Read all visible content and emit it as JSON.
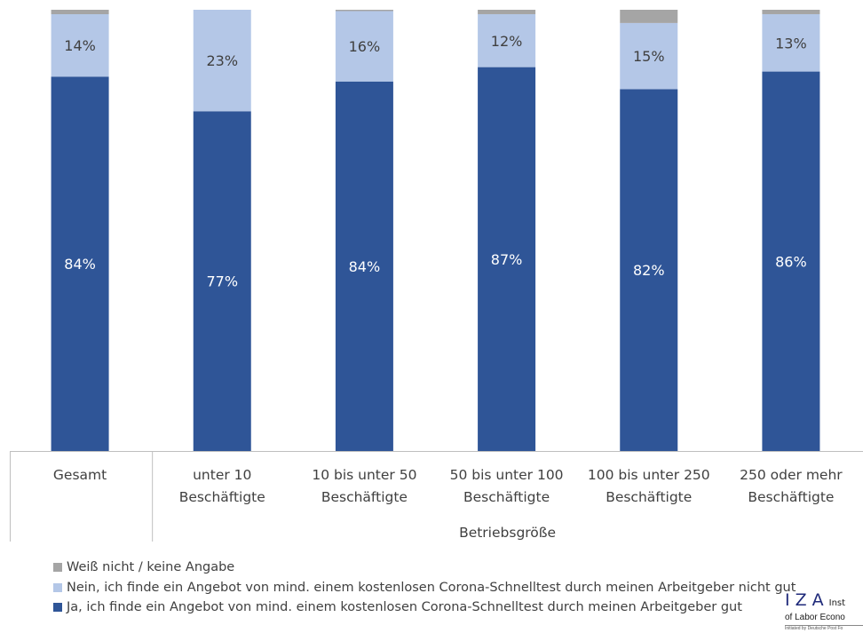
{
  "chart_data": {
    "type": "bar",
    "stacked": true,
    "normalized_percent": true,
    "categories": [
      [
        "Gesamt"
      ],
      [
        "unter 10",
        "Beschäftigte"
      ],
      [
        "10 bis unter 50",
        "Beschäftigte"
      ],
      [
        "50 bis unter 100",
        "Beschäftigte"
      ],
      [
        "100 bis unter 250",
        "Beschäftigte"
      ],
      [
        "250 oder mehr",
        "Beschäftigte"
      ]
    ],
    "group_label": "Betriebsgröße",
    "series": [
      {
        "name": "Ja, ich finde ein Angebot von mind. einem kostenlosen Corona-Schnelltest durch meinen Arbeitgeber gut",
        "color": "#2f5597",
        "values": [
          84,
          77,
          84,
          87,
          82,
          86
        ],
        "labels": [
          "84%",
          "77%",
          "84%",
          "87%",
          "82%",
          "86%"
        ]
      },
      {
        "name": "Nein, ich finde ein Angebot von mind. einem kostenlosen Corona-Schnelltest durch meinen Arbeitgeber nicht gut",
        "color": "#b4c7e7",
        "values": [
          14,
          23,
          16,
          12,
          15,
          13
        ],
        "labels": [
          "14%",
          "23%",
          "16%",
          "12%",
          "15%",
          "13%"
        ]
      },
      {
        "name": "Weiß nicht / keine Angabe",
        "color": "#a5a5a5",
        "values": [
          1,
          0,
          0.3,
          1,
          3,
          1
        ],
        "labels": [
          "",
          "",
          "",
          "",
          "",
          ""
        ]
      }
    ],
    "ylim": [
      0,
      100
    ],
    "grid": false,
    "legend_position": "bottom-left",
    "legend_order": [
      2,
      1,
      0
    ]
  },
  "logo": {
    "mark": "IZA",
    "line1_rest": "Inst",
    "line2": "of Labor Econo",
    "line3": "Initiated by Deutsche Post Fo"
  }
}
